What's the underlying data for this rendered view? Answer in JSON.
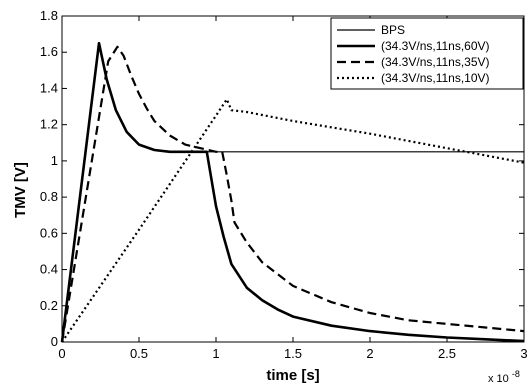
{
  "chart_data": {
    "type": "line",
    "xlabel": "time [s]",
    "ylabel": "TMV [V]",
    "x_exponent_label": "x 10",
    "x_exponent_power": "-8",
    "x_multiplier": 1e-08,
    "xlim": [
      0,
      3
    ],
    "ylim": [
      0,
      1.8
    ],
    "xticks": [
      0,
      0.5,
      1,
      1.5,
      2,
      2.5,
      3
    ],
    "xtick_labels": [
      "0",
      "0.5",
      "1",
      "1.5",
      "2",
      "2.5",
      "3"
    ],
    "yticks": [
      0,
      0.2,
      0.4,
      0.6,
      0.8,
      1,
      1.2,
      1.4,
      1.6,
      1.8
    ],
    "ytick_labels": [
      "0",
      "0.2",
      "0.4",
      "0.6",
      "0.8",
      "1",
      "1.2",
      "1.4",
      "1.6",
      "1.8"
    ],
    "grid": false,
    "legend_position": "top-right",
    "series": [
      {
        "name": "BPS",
        "style": "solid-thin",
        "x": [
          0,
          0.24,
          0.29,
          0.35,
          0.42,
          0.5,
          0.6,
          0.7,
          0.8,
          0.9,
          1.0,
          1.5,
          2.0,
          2.5,
          3.0
        ],
        "y": [
          0,
          1.65,
          1.45,
          1.28,
          1.16,
          1.09,
          1.06,
          1.05,
          1.05,
          1.05,
          1.05,
          1.05,
          1.05,
          1.05,
          1.05
        ]
      },
      {
        "name": "(34.3V/ns,11ns,60V)",
        "style": "solid-thick",
        "x": [
          0,
          0.24,
          0.29,
          0.35,
          0.42,
          0.5,
          0.6,
          0.7,
          0.8,
          0.9,
          0.94,
          1.0,
          1.05,
          1.1,
          1.2,
          1.3,
          1.4,
          1.5,
          1.75,
          2.0,
          2.25,
          2.5,
          2.75,
          3.0
        ],
        "y": [
          0,
          1.65,
          1.45,
          1.28,
          1.16,
          1.09,
          1.06,
          1.05,
          1.05,
          1.05,
          1.05,
          0.75,
          0.58,
          0.43,
          0.3,
          0.23,
          0.18,
          0.14,
          0.09,
          0.06,
          0.04,
          0.025,
          0.015,
          0.005
        ]
      },
      {
        "name": "(34.3V/ns,11ns,35V)",
        "style": "dashed",
        "x": [
          0,
          0.3,
          0.36,
          0.4,
          0.45,
          0.5,
          0.55,
          0.6,
          0.7,
          0.8,
          0.9,
          1.0,
          1.04,
          1.07,
          1.1,
          1.12,
          1.2,
          1.3,
          1.5,
          1.75,
          2.0,
          2.25,
          2.5,
          2.75,
          3.0
        ],
        "y": [
          0,
          1.55,
          1.63,
          1.58,
          1.47,
          1.37,
          1.29,
          1.22,
          1.14,
          1.09,
          1.07,
          1.05,
          1.05,
          0.92,
          0.78,
          0.66,
          0.55,
          0.44,
          0.31,
          0.22,
          0.16,
          0.12,
          0.1,
          0.08,
          0.06
        ]
      },
      {
        "name": "(34.3V/ns,11ns,10V)",
        "style": "dotted",
        "x": [
          0,
          0.5,
          1.0,
          1.07,
          1.1,
          1.2,
          1.5,
          2.0,
          2.5,
          3.0
        ],
        "y": [
          0,
          0.62,
          1.25,
          1.34,
          1.28,
          1.27,
          1.22,
          1.15,
          1.07,
          0.99
        ]
      }
    ]
  }
}
